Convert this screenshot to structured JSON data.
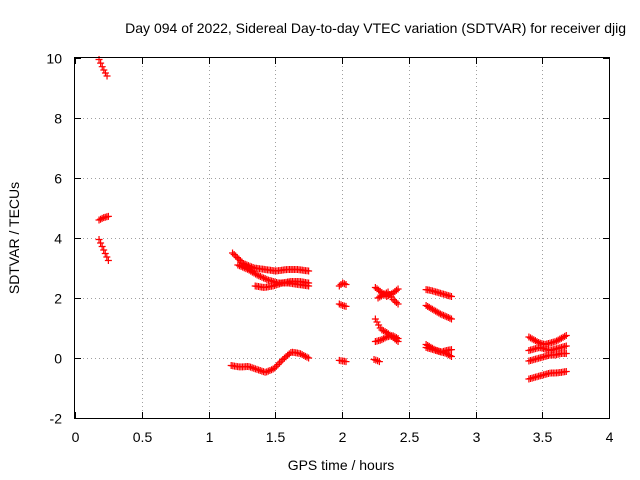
{
  "chart_data": {
    "type": "scatter",
    "title": "Day 094 of 2022, Sidereal Day-to-day VTEC variation (SDTVAR) for receiver djig",
    "xlabel": "GPS time / hours",
    "ylabel": "SDTVAR / TECUs",
    "xlim": [
      0,
      4
    ],
    "ylim": [
      -2,
      10
    ],
    "x_ticks": [
      0,
      0.5,
      1,
      1.5,
      2,
      2.5,
      3,
      3.5,
      4
    ],
    "x_tick_labels": [
      "0",
      "0.5",
      "1",
      "1.5",
      "2",
      "2.5",
      "3",
      "3.5",
      "4"
    ],
    "y_ticks": [
      -2,
      0,
      2,
      4,
      6,
      8,
      10
    ],
    "y_tick_labels": [
      "-2",
      "0",
      "2",
      "4",
      "6",
      "8",
      "10"
    ],
    "grid": true,
    "marker": "+",
    "marker_color": "#ff0000",
    "segments": [
      {
        "x0": 0.18,
        "x1": 0.24,
        "y": [
          9.95,
          9.65,
          9.4
        ]
      },
      {
        "x0": 0.18,
        "x1": 0.25,
        "y": [
          4.6,
          4.68,
          4.72
        ]
      },
      {
        "x0": 0.18,
        "x1": 0.25,
        "y": [
          3.95,
          3.6,
          3.25
        ]
      },
      {
        "x0": 1.18,
        "x1": 1.75,
        "y": [
          3.5,
          3.15,
          3.0,
          2.95,
          2.9,
          2.95,
          2.95,
          2.9
        ]
      },
      {
        "x0": 1.22,
        "x1": 1.75,
        "y": [
          3.1,
          2.95,
          2.75,
          2.6,
          2.5,
          2.5,
          2.45,
          2.4
        ]
      },
      {
        "x0": 1.35,
        "x1": 1.75,
        "y": [
          2.4,
          2.35,
          2.4,
          2.5,
          2.55,
          2.55,
          2.5
        ]
      },
      {
        "x0": 1.17,
        "x1": 1.75,
        "y": [
          -0.25,
          -0.3,
          -0.28,
          -0.38,
          -0.48,
          -0.35,
          -0.05,
          0.2,
          0.15,
          0.0
        ]
      },
      {
        "x0": 1.98,
        "x1": 2.03,
        "y": [
          2.4,
          2.5,
          2.45
        ]
      },
      {
        "x0": 1.98,
        "x1": 2.03,
        "y": [
          1.8,
          1.75,
          1.72
        ]
      },
      {
        "x0": 1.98,
        "x1": 2.03,
        "y": [
          -0.08,
          -0.1,
          -0.12
        ]
      },
      {
        "x0": 2.25,
        "x1": 2.42,
        "y": [
          2.35,
          2.2,
          2.05,
          2.15,
          2.3
        ]
      },
      {
        "x0": 2.27,
        "x1": 2.42,
        "y": [
          2.0,
          2.1,
          2.2,
          1.95,
          1.8
        ]
      },
      {
        "x0": 2.25,
        "x1": 2.42,
        "y": [
          1.3,
          0.95,
          0.85,
          0.7,
          0.55
        ]
      },
      {
        "x0": 2.25,
        "x1": 2.42,
        "y": [
          0.55,
          0.6,
          0.7,
          0.75,
          0.65
        ]
      },
      {
        "x0": 2.24,
        "x1": 2.28,
        "y": [
          -0.05,
          -0.08,
          -0.12
        ]
      },
      {
        "x0": 2.63,
        "x1": 2.82,
        "y": [
          2.28,
          2.25,
          2.2,
          2.15,
          2.1,
          2.05
        ]
      },
      {
        "x0": 2.63,
        "x1": 2.82,
        "y": [
          1.75,
          1.65,
          1.55,
          1.45,
          1.38,
          1.3
        ]
      },
      {
        "x0": 2.63,
        "x1": 2.82,
        "y": [
          0.45,
          0.35,
          0.25,
          0.2,
          0.15,
          0.05
        ]
      },
      {
        "x0": 2.63,
        "x1": 2.82,
        "y": [
          0.35,
          0.3,
          0.25,
          0.2,
          0.25,
          0.28
        ]
      },
      {
        "x0": 3.4,
        "x1": 3.68,
        "y": [
          0.7,
          0.6,
          0.5,
          0.45,
          0.5,
          0.55,
          0.65,
          0.75
        ]
      },
      {
        "x0": 3.4,
        "x1": 3.68,
        "y": [
          0.25,
          0.3,
          0.35,
          0.3,
          0.25,
          0.3,
          0.35,
          0.4
        ]
      },
      {
        "x0": 3.4,
        "x1": 3.68,
        "y": [
          -0.1,
          -0.05,
          0.0,
          0.05,
          0.1,
          0.1,
          0.15,
          0.15
        ]
      },
      {
        "x0": 3.4,
        "x1": 3.68,
        "y": [
          -0.7,
          -0.65,
          -0.6,
          -0.55,
          -0.5,
          -0.5,
          -0.48,
          -0.45
        ]
      }
    ]
  }
}
